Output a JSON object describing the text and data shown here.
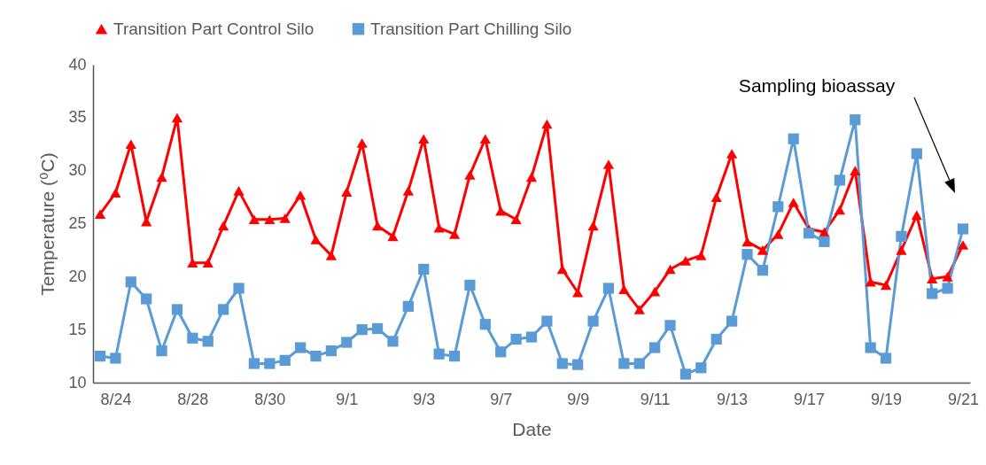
{
  "chart_data": {
    "type": "line",
    "xlabel": "Date",
    "ylabel": "Temperature (⁰C)",
    "categories": [
      null,
      "8/24",
      null,
      null,
      null,
      null,
      "8/28",
      null,
      null,
      null,
      null,
      "8/30",
      null,
      null,
      null,
      null,
      "9/1",
      null,
      null,
      null,
      null,
      "9/3",
      null,
      null,
      null,
      null,
      "9/7",
      null,
      null,
      null,
      null,
      "9/9",
      null,
      null,
      null,
      null,
      "9/11",
      null,
      null,
      null,
      null,
      "9/13",
      null,
      null,
      null,
      null,
      "9/17",
      null,
      null,
      null,
      null,
      "9/19",
      null,
      null,
      null,
      null,
      "9/21"
    ],
    "series": [
      {
        "name": "Transition Part Control Silo",
        "color": "#ff0000",
        "marker": "triangle",
        "values": [
          25.9,
          27.9,
          32.5,
          25.2,
          29.4,
          35.0,
          21.3,
          21.3,
          24.8,
          28.1,
          25.4,
          25.4,
          25.5,
          27.7,
          23.5,
          22.0,
          28.0,
          32.6,
          24.8,
          23.8,
          28.1,
          33.0,
          24.6,
          24.0,
          29.6,
          33.0,
          26.2,
          25.4,
          29.4,
          34.4,
          20.7,
          18.5,
          24.8,
          30.6,
          18.8,
          16.9,
          18.6,
          20.7,
          21.5,
          22.0,
          27.5,
          31.6,
          23.3,
          22.5,
          24.0,
          27.0,
          24.5,
          24.2,
          26.3,
          30.0,
          19.5,
          19.2,
          22.5,
          25.8,
          19.8,
          20.0,
          23.0
        ]
      },
      {
        "name": "Transition Part Chilling Silo",
        "color": "#5b9bd5",
        "marker": "square",
        "values": [
          12.5,
          12.3,
          19.5,
          17.9,
          13.0,
          16.9,
          14.2,
          13.9,
          16.9,
          18.9,
          11.8,
          11.8,
          12.1,
          13.3,
          12.5,
          13.0,
          13.8,
          15.0,
          15.1,
          13.9,
          17.2,
          20.7,
          12.7,
          12.5,
          19.2,
          15.5,
          12.9,
          14.1,
          14.3,
          15.8,
          11.8,
          11.7,
          15.8,
          18.9,
          11.8,
          11.8,
          13.3,
          15.4,
          10.8,
          11.4,
          14.1,
          15.8,
          22.1,
          20.6,
          26.6,
          33.0,
          24.1,
          23.3,
          29.1,
          34.8,
          13.3,
          12.3,
          23.8,
          31.6,
          18.4,
          18.9,
          24.5
        ]
      }
    ],
    "ylim": [
      10,
      40
    ],
    "yticks": [
      10,
      15,
      20,
      25,
      30,
      35,
      40
    ],
    "grid": false,
    "legend": "top",
    "line_style": "solid",
    "annotations": [
      "Sampling bioassay"
    ]
  }
}
